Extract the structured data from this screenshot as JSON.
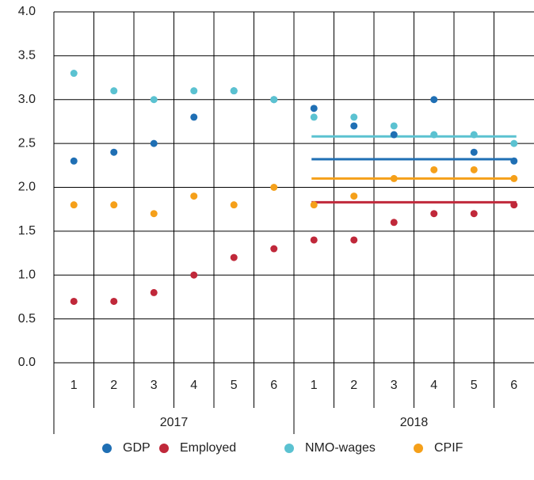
{
  "chart_data": {
    "type": "scatter",
    "categories": [
      "1",
      "2",
      "3",
      "4",
      "5",
      "6",
      "1",
      "2",
      "3",
      "4",
      "5",
      "6"
    ],
    "groups": [
      "2017",
      "2018"
    ],
    "ylim": [
      0,
      4
    ],
    "yticks": [
      {
        "value": 0,
        "label": "0.0"
      },
      0.5,
      {
        "value": 1,
        "label": "1.0"
      },
      1.5,
      {
        "value": 2,
        "label": "2.0"
      },
      2.5,
      {
        "value": 3,
        "label": "3.0"
      },
      3.5,
      {
        "value": 4,
        "label": "4.0"
      }
    ],
    "grid": true,
    "legend": "bottom",
    "series": [
      {
        "name": "GDP",
        "color": "#1f6fb4",
        "values": [
          2.3,
          2.4,
          2.5,
          2.8,
          3.1,
          3.0,
          2.9,
          2.7,
          2.6,
          3.0,
          2.4,
          2.3
        ],
        "hline": 2.32
      },
      {
        "name": "Employed",
        "color": "#c0283a",
        "values": [
          0.7,
          0.7,
          0.8,
          1.0,
          1.2,
          1.3,
          1.4,
          1.4,
          1.6,
          1.7,
          1.7,
          1.8
        ],
        "hline": 1.83
      },
      {
        "name": "NMO-wages",
        "color": "#5bc2d1",
        "values": [
          3.3,
          3.1,
          3.0,
          3.1,
          3.1,
          3.0,
          2.8,
          2.8,
          2.7,
          2.6,
          2.6,
          2.5
        ],
        "hline": 2.58
      },
      {
        "name": "CPIF",
        "color": "#f5a01a",
        "values": [
          1.8,
          1.8,
          1.7,
          1.9,
          1.8,
          2.0,
          1.8,
          1.9,
          2.1,
          2.2,
          2.2,
          2.1
        ],
        "hline": 2.1
      }
    ]
  }
}
